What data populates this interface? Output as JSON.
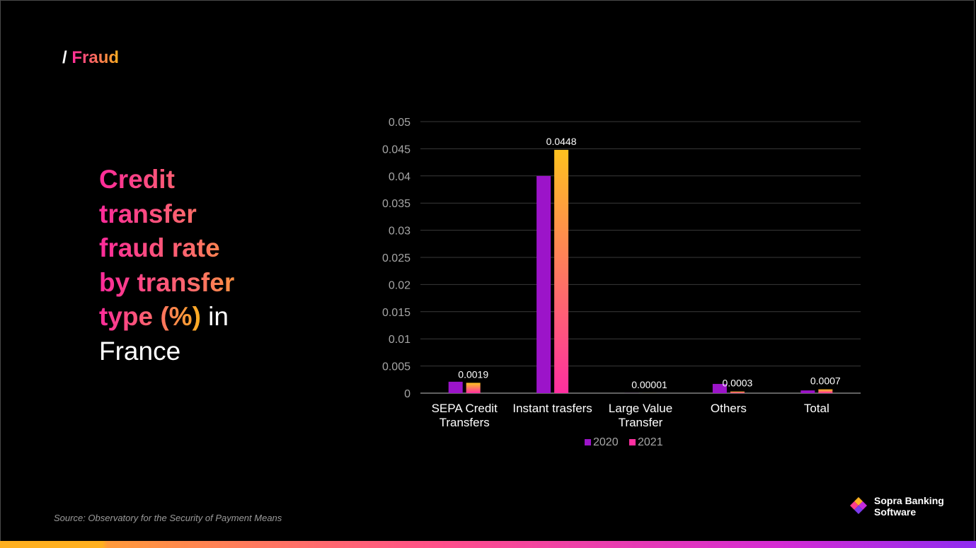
{
  "section": {
    "slash": "/",
    "name": "Fraud"
  },
  "headline": {
    "line1": "Credit",
    "line2": "transfer",
    "line3": "fraud rate",
    "line4": "by transfer",
    "line5_highlight": "type (%)",
    "line5_plain": " in",
    "line6": "France"
  },
  "source": {
    "prefix": "Source: ",
    "observatory": "Observatory",
    "middle": " for the Security of Payment ",
    "means": "Means"
  },
  "logo": {
    "line1": "Sopra Banking",
    "line2": "Software"
  },
  "colors": {
    "series2020": "#9c14c9",
    "series2021_top": "#ffc21f",
    "series2021_bottom": "#ff2fa0",
    "gridline": "#3a3a3a",
    "axis_text": "#a6a6a6"
  },
  "chart_data": {
    "type": "bar",
    "categories": [
      "SEPA Credit Transfers",
      "Instant trasfers",
      "Large Value Transfer",
      "Others",
      "Total"
    ],
    "category_lines": [
      [
        "SEPA Credit",
        "Transfers"
      ],
      [
        "Instant trasfers"
      ],
      [
        "Large Value",
        "Transfer"
      ],
      [
        "Others"
      ],
      [
        "Total"
      ]
    ],
    "series": [
      {
        "name": "2020",
        "values": [
          0.0021,
          0.04,
          1e-05,
          0.0017,
          0.0005
        ]
      },
      {
        "name": "2021",
        "values": [
          0.0019,
          0.0448,
          1e-05,
          0.0003,
          0.0007
        ]
      }
    ],
    "data_labels": {
      "series": "2021",
      "labels": [
        "0.0019",
        "0.0448",
        "0.00001",
        "0.0003",
        "0.0007"
      ]
    },
    "ylim": [
      0,
      0.05
    ],
    "yticks": [
      "0",
      "0.005",
      "0.01",
      "0.015",
      "0.02",
      "0.025",
      "0.03",
      "0.035",
      "0.04",
      "0.045",
      "0.05"
    ],
    "ytick_values": [
      0,
      0.005,
      0.01,
      0.015,
      0.02,
      0.025,
      0.03,
      0.035,
      0.04,
      0.045,
      0.05
    ],
    "grid": true,
    "legend": "bottom-center"
  }
}
